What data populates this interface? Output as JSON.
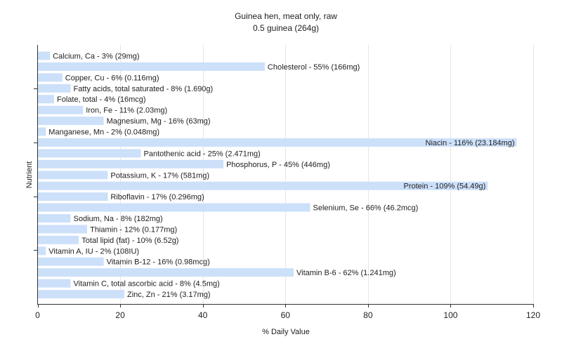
{
  "chart_data": {
    "type": "bar",
    "orientation": "horizontal",
    "title": "Guinea hen, meat only, raw",
    "subtitle": "0.5 guinea (264g)",
    "xlabel": "% Daily Value",
    "ylabel": "Nutrient",
    "xlim": [
      0,
      120
    ],
    "xticks": [
      0,
      20,
      40,
      60,
      80,
      100,
      120
    ],
    "grid": true,
    "bar_color": "#cce0fa",
    "grid_color": "#e6e6e6",
    "categories": [
      "Calcium, Ca",
      "Cholesterol",
      "Copper, Cu",
      "Fatty acids, total saturated",
      "Folate, total",
      "Iron, Fe",
      "Magnesium, Mg",
      "Manganese, Mn",
      "Niacin",
      "Pantothenic acid",
      "Phosphorus, P",
      "Potassium, K",
      "Protein",
      "Riboflavin",
      "Selenium, Se",
      "Sodium, Na",
      "Thiamin",
      "Total lipid (fat)",
      "Vitamin A, IU",
      "Vitamin B-12",
      "Vitamin B-6",
      "Vitamin C, total ascorbic acid",
      "Zinc, Zn"
    ],
    "values": [
      3,
      55,
      6,
      8,
      4,
      11,
      16,
      2,
      116,
      25,
      45,
      17,
      109,
      17,
      66,
      8,
      12,
      10,
      2,
      16,
      62,
      8,
      21
    ],
    "labels": [
      "Calcium, Ca - 3% (29mg)",
      "Cholesterol - 55% (166mg)",
      "Copper, Cu - 6% (0.116mg)",
      "Fatty acids, total saturated - 8% (1.690g)",
      "Folate, total - 4% (16mcg)",
      "Iron, Fe - 11% (2.03mg)",
      "Magnesium, Mg - 16% (63mg)",
      "Manganese, Mn - 2% (0.048mg)",
      "Niacin - 116% (23.184mg)",
      "Pantothenic acid - 25% (2.471mg)",
      "Phosphorus, P - 45% (446mg)",
      "Potassium, K - 17% (581mg)",
      "Protein - 109% (54.49g)",
      "Riboflavin - 17% (0.296mg)",
      "Selenium, Se - 66% (46.2mcg)",
      "Sodium, Na - 8% (182mg)",
      "Thiamin - 12% (0.177mg)",
      "Total lipid (fat) - 10% (6.52g)",
      "Vitamin A, IU - 2% (108IU)",
      "Vitamin B-12 - 16% (0.98mcg)",
      "Vitamin B-6 - 62% (1.241mg)",
      "Vitamin C, total ascorbic acid - 8% (4.5mg)",
      "Zinc, Zn - 21% (3.17mg)"
    ],
    "inside_label_threshold": 100
  }
}
